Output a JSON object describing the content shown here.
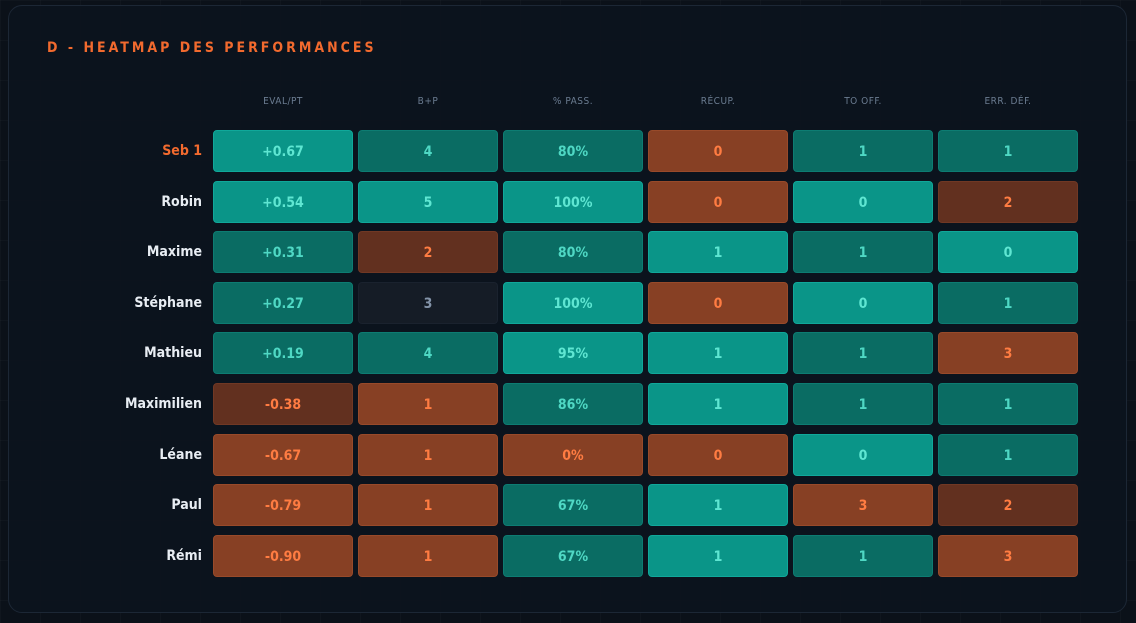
{
  "panel": {
    "title": "D - HEATMAP DES PERFORMANCES"
  },
  "chart_data": {
    "type": "heatmap",
    "title": "D - HEATMAP DES PERFORMANCES",
    "columns": [
      "EVAL/PT",
      "B+P",
      "% PASS.",
      "RÉCUP.",
      "TO OFF.",
      "ERR. DÉF."
    ],
    "rows": [
      {
        "name": "Seb 1",
        "highlight": true,
        "cells": [
          {
            "text": "+0.67",
            "tone": "good-strong"
          },
          {
            "text": "4",
            "tone": "good-mid"
          },
          {
            "text": "80%",
            "tone": "good-mid"
          },
          {
            "text": "0",
            "tone": "bad-mid"
          },
          {
            "text": "1",
            "tone": "good-mid"
          },
          {
            "text": "1",
            "tone": "good-mid"
          }
        ]
      },
      {
        "name": "Robin",
        "highlight": false,
        "cells": [
          {
            "text": "+0.54",
            "tone": "good-strong"
          },
          {
            "text": "5",
            "tone": "good-strong"
          },
          {
            "text": "100%",
            "tone": "good-strong"
          },
          {
            "text": "0",
            "tone": "bad-mid"
          },
          {
            "text": "0",
            "tone": "good-strong"
          },
          {
            "text": "2",
            "tone": "bad-strong"
          }
        ]
      },
      {
        "name": "Maxime",
        "highlight": false,
        "cells": [
          {
            "text": "+0.31",
            "tone": "good-mid"
          },
          {
            "text": "2",
            "tone": "bad-strong"
          },
          {
            "text": "80%",
            "tone": "good-mid"
          },
          {
            "text": "1",
            "tone": "good-strong"
          },
          {
            "text": "1",
            "tone": "good-mid"
          },
          {
            "text": "0",
            "tone": "good-strong"
          }
        ]
      },
      {
        "name": "Stéphane",
        "highlight": false,
        "cells": [
          {
            "text": "+0.27",
            "tone": "good-mid"
          },
          {
            "text": "3",
            "tone": "neutral"
          },
          {
            "text": "100%",
            "tone": "good-strong"
          },
          {
            "text": "0",
            "tone": "bad-mid"
          },
          {
            "text": "0",
            "tone": "good-strong"
          },
          {
            "text": "1",
            "tone": "good-mid"
          }
        ]
      },
      {
        "name": "Mathieu",
        "highlight": false,
        "cells": [
          {
            "text": "+0.19",
            "tone": "good-mid"
          },
          {
            "text": "4",
            "tone": "good-mid"
          },
          {
            "text": "95%",
            "tone": "good-strong"
          },
          {
            "text": "1",
            "tone": "good-strong"
          },
          {
            "text": "1",
            "tone": "good-mid"
          },
          {
            "text": "3",
            "tone": "bad-mid"
          }
        ]
      },
      {
        "name": "Maximilien",
        "highlight": false,
        "cells": [
          {
            "text": "-0.38",
            "tone": "bad-strong"
          },
          {
            "text": "1",
            "tone": "bad-mid"
          },
          {
            "text": "86%",
            "tone": "good-mid"
          },
          {
            "text": "1",
            "tone": "good-strong"
          },
          {
            "text": "1",
            "tone": "good-mid"
          },
          {
            "text": "1",
            "tone": "good-mid"
          }
        ]
      },
      {
        "name": "Léane",
        "highlight": false,
        "cells": [
          {
            "text": "-0.67",
            "tone": "bad-mid"
          },
          {
            "text": "1",
            "tone": "bad-mid"
          },
          {
            "text": "0%",
            "tone": "bad-mid"
          },
          {
            "text": "0",
            "tone": "bad-mid"
          },
          {
            "text": "0",
            "tone": "good-strong"
          },
          {
            "text": "1",
            "tone": "good-mid"
          }
        ]
      },
      {
        "name": "Paul",
        "highlight": false,
        "cells": [
          {
            "text": "-0.79",
            "tone": "bad-mid"
          },
          {
            "text": "1",
            "tone": "bad-mid"
          },
          {
            "text": "67%",
            "tone": "good-mid"
          },
          {
            "text": "1",
            "tone": "good-strong"
          },
          {
            "text": "3",
            "tone": "bad-mid"
          },
          {
            "text": "2",
            "tone": "bad-strong"
          }
        ]
      },
      {
        "name": "Rémi",
        "highlight": false,
        "cells": [
          {
            "text": "-0.90",
            "tone": "bad-mid"
          },
          {
            "text": "1",
            "tone": "bad-mid"
          },
          {
            "text": "67%",
            "tone": "good-mid"
          },
          {
            "text": "1",
            "tone": "good-strong"
          },
          {
            "text": "1",
            "tone": "good-mid"
          },
          {
            "text": "3",
            "tone": "bad-mid"
          }
        ]
      }
    ]
  },
  "colors": {
    "accent": "#f26a2e",
    "header_text": "#6b7c91",
    "label_text": "#e8edf3",
    "tones": {
      "good-strong": {
        "bg": "#0a9588",
        "border": "#10a89a",
        "fg": "#5fe6d2"
      },
      "good-mid": {
        "bg": "#0a6c63",
        "border": "#0d7c72",
        "fg": "#4fd8c4"
      },
      "bad-mid": {
        "bg": "#874024",
        "border": "#984a2a",
        "fg": "#ff7c42"
      },
      "bad-strong": {
        "bg": "#62301f",
        "border": "#703824",
        "fg": "#ff7c42"
      },
      "neutral": {
        "bg": "#151c26",
        "border": "#1a222e",
        "fg": "#8393a8"
      }
    }
  }
}
